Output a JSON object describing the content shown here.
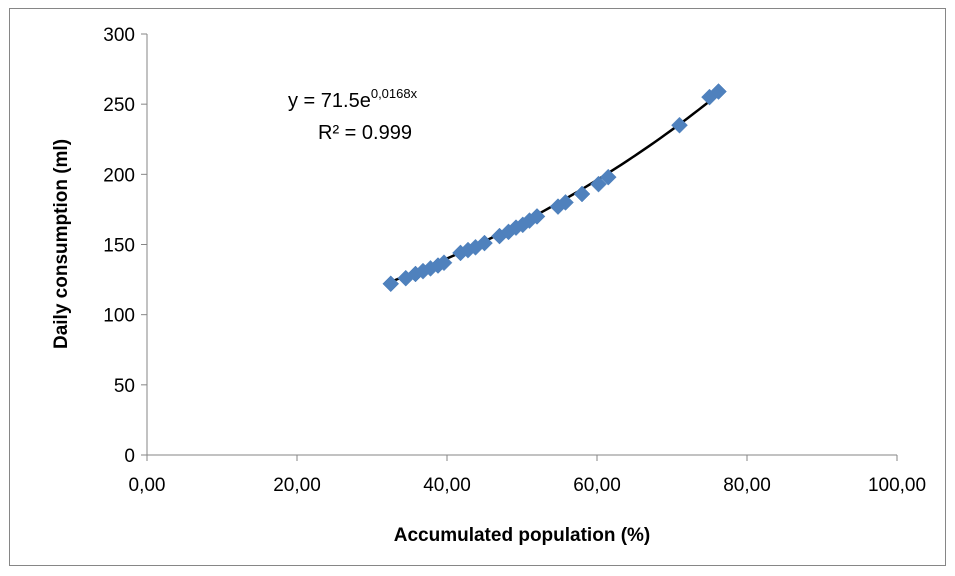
{
  "chart_data": {
    "type": "scatter",
    "xlabel": "Accumulated population (%)",
    "ylabel": "Daily consumption (ml)",
    "xlim": [
      0,
      100
    ],
    "ylim": [
      0,
      300
    ],
    "x_ticks": [
      "0,00",
      "20,00",
      "40,00",
      "60,00",
      "80,00",
      "100,00"
    ],
    "y_ticks": [
      "0",
      "50",
      "100",
      "150",
      "200",
      "250",
      "300"
    ],
    "grid": false,
    "legend": "none",
    "marker": "diamond",
    "marker_color": "#4F81BD",
    "trendline_color": "#000000",
    "series": [
      {
        "x": [
          32.5,
          34.5,
          35.8,
          36.8,
          37.8,
          38.8,
          39.6,
          41.8,
          42.8,
          43.8,
          45.0,
          47.0,
          48.2,
          49.2,
          50.1,
          51.0,
          52.0,
          54.8,
          55.8,
          58.0,
          60.2,
          61.5,
          71.0,
          75.0,
          76.2
        ],
        "values": [
          122,
          126,
          129,
          131,
          133,
          135,
          137,
          144,
          146,
          148,
          151,
          156,
          159,
          162,
          164,
          167,
          170,
          177,
          180,
          186,
          193,
          198,
          235,
          255,
          259
        ]
      }
    ],
    "trendline": {
      "type": "exponential",
      "a": 71.5,
      "b": 0.0168,
      "x_range": [
        32.5,
        76.5
      ]
    },
    "annotations": {
      "equation_base": "y = 71.5e",
      "equation_exp": "0,0168x",
      "r_squared": "R² = 0.999"
    }
  }
}
